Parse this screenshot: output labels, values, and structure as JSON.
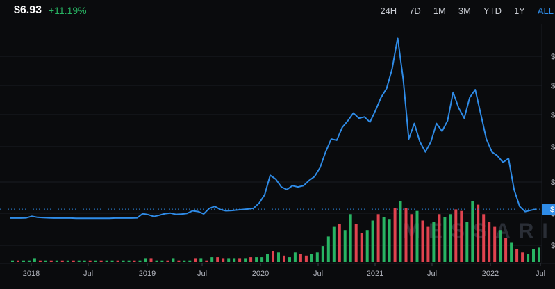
{
  "header": {
    "price": "$6.93",
    "change": "+11.19%",
    "ranges": [
      {
        "label": "24H",
        "active": false
      },
      {
        "label": "7D",
        "active": false
      },
      {
        "label": "1M",
        "active": false
      },
      {
        "label": "3M",
        "active": false
      },
      {
        "label": "YTD",
        "active": false
      },
      {
        "label": "1Y",
        "active": false
      },
      {
        "label": "ALL",
        "active": true
      }
    ]
  },
  "colors": {
    "background": "#0a0b0d",
    "line": "#2f8ce8",
    "up": "#28b463",
    "down": "#e0434f",
    "grid": "#1a1d23",
    "price_line": "#2f8ce8"
  },
  "watermark": "MESSARI",
  "chart_data": {
    "type": "line",
    "title": "",
    "xlabel": "",
    "ylabel": "",
    "x_ticks": [
      "2018",
      "Jul",
      "2019",
      "Jul",
      "2020",
      "Jul",
      "2021",
      "Jul",
      "2022",
      "Jul"
    ],
    "y_tick_labels": [
      "$",
      "$",
      "$",
      "$",
      "$",
      "$",
      "$"
    ],
    "current_value_label": "$",
    "grid": true,
    "series": [
      {
        "values": [
          3.5,
          3.5,
          3.5,
          3.6,
          4.2,
          3.8,
          3.7,
          3.6,
          3.5,
          3.5,
          3.5,
          3.5,
          3.4,
          3.4,
          3.4,
          3.4,
          3.4,
          3.4,
          3.4,
          3.5,
          3.5,
          3.5,
          3.5,
          3.6,
          5.2,
          4.8,
          4.1,
          4.6,
          5.2,
          5.4,
          4.9,
          5.0,
          5.3,
          6.3,
          6.0,
          5.1,
          7.2,
          8.0,
          6.8,
          6.3,
          6.4,
          6.6,
          6.8,
          7.0,
          7.3,
          9.3,
          12.5,
          20.0,
          18.5,
          15.5,
          14.5,
          16.0,
          15.5,
          16.0,
          18.0,
          19.5,
          23.0,
          29.0,
          34.0,
          33.5,
          38.5,
          41.0,
          44.0,
          42.0,
          42.5,
          40.5,
          45.0,
          50.0,
          53.5,
          61.0,
          73.0,
          57.0,
          34.0,
          40.0,
          33.0,
          29.0,
          33.0,
          40.0,
          37.0,
          41.0,
          52.0,
          46.0,
          42.0,
          50.0,
          53.0,
          43.5,
          34.0,
          29.0,
          27.5,
          25.0,
          26.5,
          14.5,
          8.0,
          6.0,
          6.5,
          6.93
        ]
      }
    ],
    "volume": [
      {
        "values": [
          1,
          1,
          1,
          1,
          2,
          1,
          1,
          1,
          1,
          1,
          1,
          1,
          1,
          1,
          1,
          1,
          1,
          1,
          1,
          1,
          1,
          1,
          1,
          1,
          2,
          2,
          1,
          1,
          1,
          2,
          1,
          1,
          1,
          2,
          2,
          1,
          3,
          3,
          2,
          2,
          2,
          2,
          2,
          3,
          3,
          3,
          5,
          7,
          6,
          4,
          3,
          6,
          5,
          4,
          5,
          6,
          10,
          16,
          22,
          24,
          20,
          30,
          24,
          18,
          20,
          26,
          30,
          28,
          27,
          34,
          38,
          34,
          30,
          32,
          26,
          22,
          25,
          30,
          28,
          30,
          33,
          32,
          25,
          38,
          36,
          30,
          25,
          22,
          20,
          15,
          12,
          8,
          6,
          5,
          8,
          9
        ],
        "up": [
          true,
          false,
          true,
          true,
          true,
          false,
          true,
          false,
          true,
          false,
          true,
          false,
          true,
          true,
          false,
          true,
          false,
          true,
          true,
          false,
          true,
          true,
          false,
          true,
          true,
          false,
          true,
          true,
          false,
          true,
          false,
          true,
          true,
          false,
          true,
          false,
          true,
          false,
          false,
          true,
          true,
          false,
          true,
          false,
          true,
          true,
          true,
          false,
          true,
          false,
          true,
          true,
          false,
          false,
          true,
          true,
          true,
          true,
          true,
          false,
          true,
          true,
          false,
          false,
          true,
          true,
          false,
          true,
          true,
          false,
          true,
          false,
          false,
          true,
          false,
          false,
          true,
          false,
          true,
          true,
          false,
          false,
          true,
          true,
          false,
          false,
          false,
          false,
          true,
          false,
          true,
          false,
          false,
          true,
          true,
          true
        ]
      }
    ]
  }
}
